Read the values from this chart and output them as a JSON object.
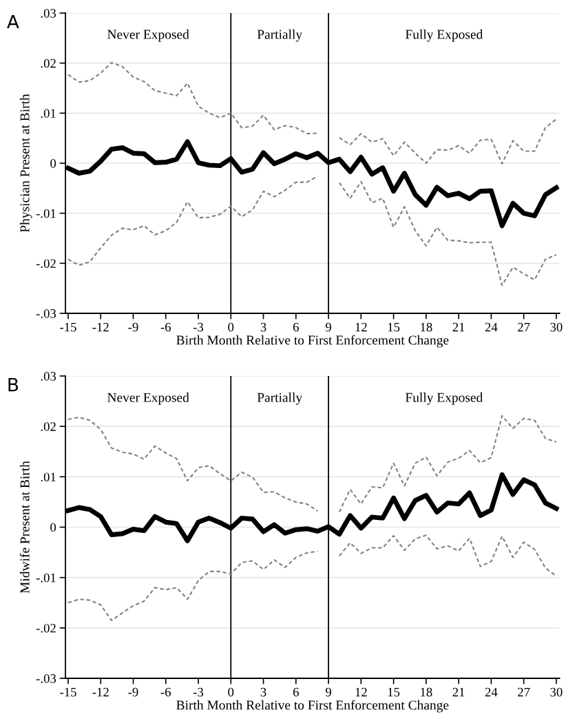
{
  "chart_data": [
    {
      "type": "line",
      "xlabel": "Birth Month Relative to First Enforcement Change",
      "ylabel": "Physician Present at Birth",
      "x": [
        -15,
        -14,
        -13,
        -12,
        -11,
        -10,
        -9,
        -8,
        -7,
        -6,
        -5,
        -4,
        -3,
        -2,
        -1,
        0,
        1,
        2,
        3,
        4,
        5,
        6,
        7,
        8,
        9,
        10,
        11,
        12,
        13,
        14,
        15,
        16,
        17,
        18,
        19,
        20,
        21,
        22,
        23,
        24,
        25,
        26,
        27,
        28,
        29,
        30
      ],
      "series": [
        {
          "color": "#000000",
          "line_style": "solid",
          "values": [
            -0.001,
            -0.002,
            -0.0016,
            0.0004,
            0.0028,
            0.0031,
            0.002,
            0.0019,
            0.0001,
            0.0002,
            0.0008,
            0.0043,
            0.0001,
            -0.0004,
            -0.0005,
            0.0009,
            -0.0018,
            -0.0012,
            0.0021,
            -0.0001,
            0.0008,
            0.0019,
            0.0011,
            0.002,
            0.0001,
            0.0008,
            -0.0017,
            0.0012,
            -0.0022,
            -0.0009,
            -0.0056,
            -0.002,
            -0.0063,
            -0.0084,
            -0.0048,
            -0.0065,
            -0.006,
            -0.0071,
            -0.0056,
            -0.0055,
            -0.0125,
            -0.008,
            -0.01,
            -0.0105,
            -0.0063,
            -0.0049
          ]
        },
        {
          "color": "#808080",
          "line_style": "dashed",
          "values": [
            0.0177,
            0.0162,
            0.0165,
            0.018,
            0.0201,
            0.0193,
            0.0172,
            0.0163,
            0.0145,
            0.014,
            0.0135,
            0.016,
            0.0114,
            0.01,
            0.0091,
            0.01,
            0.0071,
            0.0074,
            0.0096,
            0.0067,
            0.0075,
            0.0071,
            0.0059,
            0.006,
            null,
            0.0051,
            0.0037,
            0.0059,
            0.0042,
            0.0049,
            0.0015,
            0.0042,
            0.002,
            0.0,
            0.0027,
            0.0026,
            0.0035,
            0.002,
            0.0046,
            0.0048,
            -0.0001,
            0.0045,
            0.0024,
            0.0024,
            0.0071,
            0.0088
          ]
        },
        {
          "color": "#808080",
          "line_style": "dashed",
          "values": [
            -0.0192,
            -0.0204,
            -0.0197,
            -0.0169,
            -0.0144,
            -0.013,
            -0.0133,
            -0.0125,
            -0.0143,
            -0.0135,
            -0.0118,
            -0.0077,
            -0.0109,
            -0.0108,
            -0.0102,
            -0.0086,
            -0.0107,
            -0.0093,
            -0.0056,
            -0.0067,
            -0.0054,
            -0.0038,
            -0.0038,
            -0.0026,
            null,
            -0.0039,
            -0.007,
            -0.0037,
            -0.0079,
            -0.007,
            -0.0128,
            -0.0087,
            -0.0135,
            -0.0165,
            -0.0128,
            -0.0154,
            -0.0155,
            -0.0159,
            -0.0158,
            -0.0158,
            -0.0244,
            -0.0208,
            -0.0221,
            -0.0233,
            -0.0192,
            -0.0183
          ]
        }
      ],
      "xlim": [
        -15.25,
        30.3
      ],
      "xticks": [
        -15,
        -12,
        -9,
        -6,
        -3,
        0,
        3,
        6,
        9,
        12,
        15,
        18,
        21,
        24,
        27,
        30
      ],
      "ylim": [
        -0.03,
        0.03
      ],
      "yticks": [
        {
          "value": -0.03,
          "label": "-.03"
        },
        {
          "value": -0.02,
          "label": "-.02"
        },
        {
          "value": -0.01,
          "label": "-.01"
        },
        {
          "value": 0,
          "label": "0"
        },
        {
          "value": 0.01,
          "label": ".01"
        },
        {
          "value": 0.02,
          "label": ".02"
        },
        {
          "value": 0.03,
          "label": ".03"
        }
      ],
      "grid": "y",
      "legend": false,
      "ref_lines": [
        {
          "axis": "x",
          "value": 0,
          "color": "#000000"
        },
        {
          "axis": "x",
          "value": 9,
          "color": "#000000"
        }
      ],
      "annotations": [
        "A",
        "Never Exposed",
        "Partially",
        "Fully Exposed"
      ]
    },
    {
      "type": "line",
      "xlabel": "Birth Month Relative to First Enforcement Change",
      "ylabel": "Midwife Present at Birth",
      "x": [
        -15,
        -14,
        -13,
        -12,
        -11,
        -10,
        -9,
        -8,
        -7,
        -6,
        -5,
        -4,
        -3,
        -2,
        -1,
        0,
        1,
        2,
        3,
        4,
        5,
        6,
        7,
        8,
        9,
        10,
        11,
        12,
        13,
        14,
        15,
        16,
        17,
        18,
        19,
        20,
        21,
        22,
        23,
        24,
        25,
        26,
        27,
        28,
        29,
        30
      ],
      "series": [
        {
          "color": "#000000",
          "line_style": "solid",
          "values": [
            0.0033,
            0.0039,
            0.0035,
            0.0021,
            -0.0015,
            -0.0013,
            -0.0004,
            -0.0007,
            0.0021,
            0.001,
            0.0007,
            -0.0027,
            0.001,
            0.0018,
            0.0009,
            -0.0002,
            0.0018,
            0.0016,
            -0.0009,
            0.0005,
            -0.0012,
            -0.0005,
            -0.0003,
            -0.0008,
            0.0001,
            -0.0014,
            0.0023,
            -0.0002,
            0.002,
            0.0018,
            0.0058,
            0.0017,
            0.0053,
            0.0063,
            0.003,
            0.0048,
            0.0046,
            0.0068,
            0.0023,
            0.0034,
            0.0104,
            0.0065,
            0.0094,
            0.0084,
            0.0048,
            0.0037
          ]
        },
        {
          "color": "#808080",
          "line_style": "dashed",
          "values": [
            0.0214,
            0.0218,
            0.0212,
            0.0194,
            0.0157,
            0.0149,
            0.0145,
            0.0135,
            0.0161,
            0.0147,
            0.0136,
            0.0092,
            0.0118,
            0.0122,
            0.0106,
            0.0092,
            0.0109,
            0.0099,
            0.0069,
            0.007,
            0.0058,
            0.005,
            0.0046,
            0.0032,
            null,
            0.003,
            0.0075,
            0.0046,
            0.008,
            0.0078,
            0.0127,
            0.0082,
            0.0127,
            0.0139,
            0.0102,
            0.0129,
            0.0137,
            0.0152,
            0.0128,
            0.0138,
            0.0221,
            0.0196,
            0.0216,
            0.0212,
            0.0176,
            0.0169
          ]
        },
        {
          "color": "#808080",
          "line_style": "dashed",
          "values": [
            -0.015,
            -0.0143,
            -0.0145,
            -0.0154,
            -0.0185,
            -0.017,
            -0.0156,
            -0.0147,
            -0.012,
            -0.0124,
            -0.012,
            -0.0143,
            -0.0106,
            -0.0088,
            -0.0088,
            -0.0093,
            -0.007,
            -0.0067,
            -0.0084,
            -0.0065,
            -0.008,
            -0.006,
            -0.0051,
            -0.0048,
            null,
            -0.0057,
            -0.0031,
            -0.0052,
            -0.0041,
            -0.0041,
            -0.0017,
            -0.0046,
            -0.0023,
            -0.0016,
            -0.0043,
            -0.0037,
            -0.0047,
            -0.0022,
            -0.0078,
            -0.0068,
            -0.0018,
            -0.006,
            -0.003,
            -0.0044,
            -0.0081,
            -0.0097
          ]
        }
      ],
      "xlim": [
        -15.25,
        30.3
      ],
      "xticks": [
        -15,
        -12,
        -9,
        -6,
        -3,
        0,
        3,
        6,
        9,
        12,
        15,
        18,
        21,
        24,
        27,
        30
      ],
      "ylim": [
        -0.03,
        0.03
      ],
      "yticks": [
        {
          "value": -0.03,
          "label": "-.03"
        },
        {
          "value": -0.02,
          "label": "-.02"
        },
        {
          "value": -0.01,
          "label": "-.01"
        },
        {
          "value": 0,
          "label": "0"
        },
        {
          "value": 0.01,
          "label": ".01"
        },
        {
          "value": 0.02,
          "label": ".02"
        },
        {
          "value": 0.03,
          "label": ".03"
        }
      ],
      "grid": "y",
      "legend": false,
      "ref_lines": [
        {
          "axis": "x",
          "value": 0,
          "color": "#000000"
        },
        {
          "axis": "x",
          "value": 9,
          "color": "#000000"
        }
      ],
      "annotations": [
        "B",
        "Never Exposed",
        "Partially",
        "Fully Exposed"
      ]
    }
  ]
}
